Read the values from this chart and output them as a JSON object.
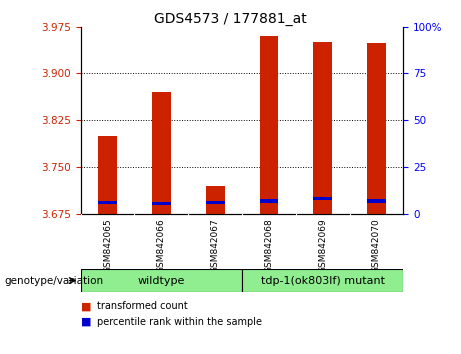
{
  "title": "GDS4573 / 177881_at",
  "samples": [
    "GSM842065",
    "GSM842066",
    "GSM842067",
    "GSM842068",
    "GSM842069",
    "GSM842070"
  ],
  "red_values": [
    3.8,
    3.87,
    3.72,
    3.96,
    3.95,
    3.948
  ],
  "blue_values": [
    3.694,
    3.692,
    3.694,
    3.696,
    3.7,
    3.696
  ],
  "ylim": [
    3.675,
    3.975
  ],
  "yticks_left": [
    3.675,
    3.75,
    3.825,
    3.9,
    3.975
  ],
  "yticks_right": [
    0,
    25,
    50,
    75,
    100
  ],
  "yticks_right_vals": [
    3.675,
    3.75,
    3.825,
    3.9,
    3.975
  ],
  "gridlines": [
    3.75,
    3.825,
    3.9
  ],
  "bar_bottom": 3.675,
  "red_color": "#CC2200",
  "blue_color": "#0000CC",
  "genotype_label": "genotype/variation",
  "wildtype_label": "wildtype",
  "mutant_label": "tdp-1(ok803lf) mutant",
  "group_color": "#90EE90",
  "legend_items": [
    {
      "label": "transformed count",
      "color": "#CC2200"
    },
    {
      "label": "percentile rank within the sample",
      "color": "#0000CC"
    }
  ],
  "bar_width": 0.35,
  "plot_bg": "#FFFFFF",
  "tick_label_color_left": "#CC2200",
  "tick_label_color_right": "#0000FF",
  "xlabel_area_color": "#C8C8C8",
  "title_fontsize": 10,
  "tick_fontsize": 7.5,
  "label_fontsize": 7.5
}
